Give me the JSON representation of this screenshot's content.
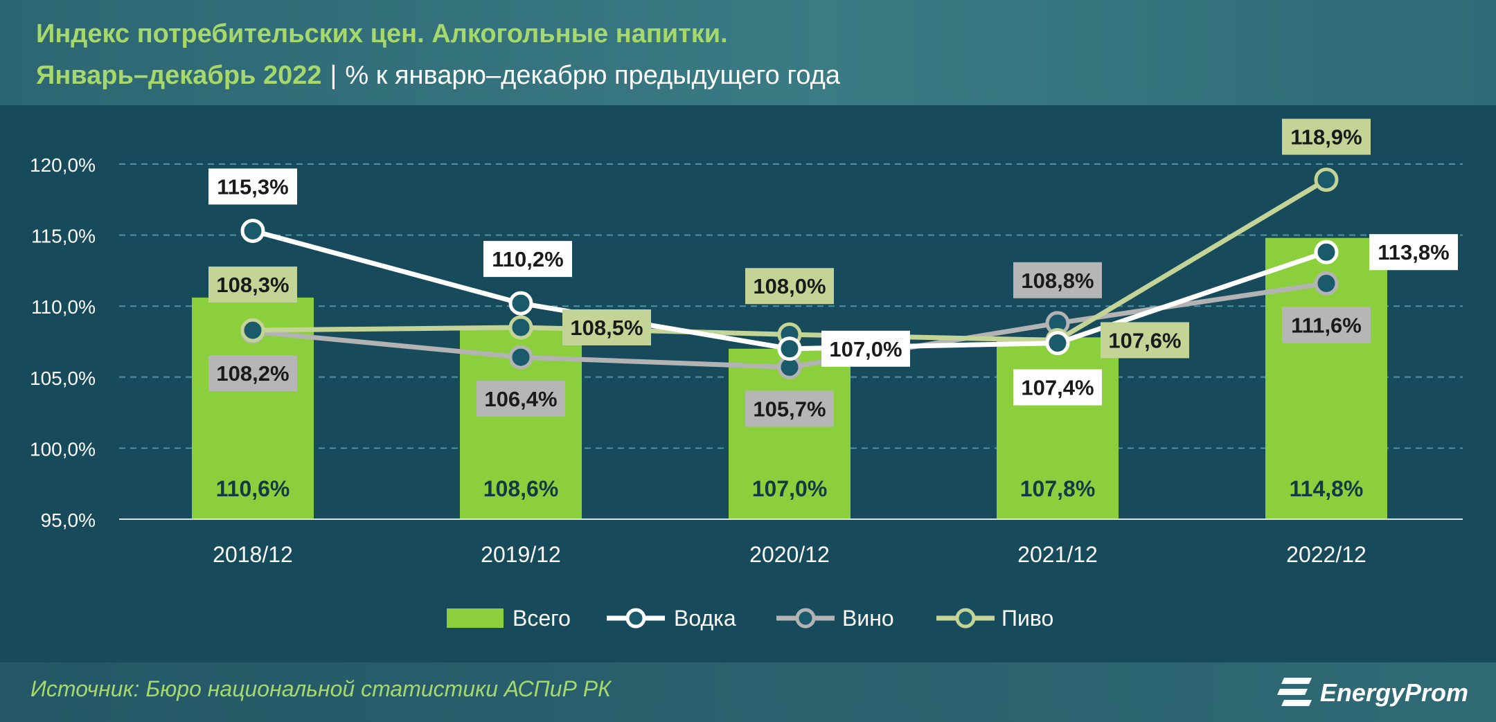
{
  "title_line1": "Индекс потребительских цен. Алкогольные напитки.",
  "title_line2_period": "Январь–декабрь 2022",
  "title_separator": "|",
  "title_line2_unit": "% к январю–декабрю предыдущего года",
  "source": "Источник: Бюро национальной статистики АСПиР РК",
  "logo_text": "EnergyProm",
  "colors": {
    "bar": "#8ccf3c",
    "vodka": "#ffffff",
    "wine": "#b3b3b3",
    "beer": "#c3d496",
    "grid": "#4e93a3",
    "marker_fill": "#1b5a6a",
    "axis_text": "#ffffff"
  },
  "chart_data": {
    "type": "bar",
    "title": "Индекс потребительских цен. Алкогольные напитки.",
    "categories": [
      "2018/12",
      "2019/12",
      "2020/12",
      "2021/12",
      "2022/12"
    ],
    "ylim": [
      95,
      120
    ],
    "yticks": [
      95,
      100,
      105,
      110,
      115,
      120
    ],
    "ytick_labels": [
      "95,0%",
      "100,0%",
      "105,0%",
      "110,0%",
      "115,0%",
      "120,0%"
    ],
    "grid": true,
    "legend_position": "bottom",
    "series": [
      {
        "name": "Всего",
        "type": "bar",
        "values": [
          110.6,
          108.6,
          107.0,
          107.8,
          114.8
        ],
        "labels": [
          "110,6%",
          "108,6%",
          "107,0%",
          "107,8%",
          "114,8%"
        ]
      },
      {
        "name": "Водка",
        "type": "line",
        "values": [
          115.3,
          110.2,
          107.0,
          107.4,
          113.8
        ],
        "labels": [
          "115,3%",
          "110,2%",
          "107,0%",
          "107,4%",
          "113,8%"
        ]
      },
      {
        "name": "Вино",
        "type": "line",
        "values": [
          108.2,
          106.4,
          105.7,
          108.8,
          111.6
        ],
        "labels": [
          "108,2%",
          "106,4%",
          "105,7%",
          "108,8%",
          "111,6%"
        ]
      },
      {
        "name": "Пиво",
        "type": "line",
        "values": [
          108.3,
          108.5,
          108.0,
          107.6,
          118.9
        ],
        "labels": [
          "108,3%",
          "108,5%",
          "108,0%",
          "107,6%",
          "118,9%"
        ]
      }
    ]
  }
}
